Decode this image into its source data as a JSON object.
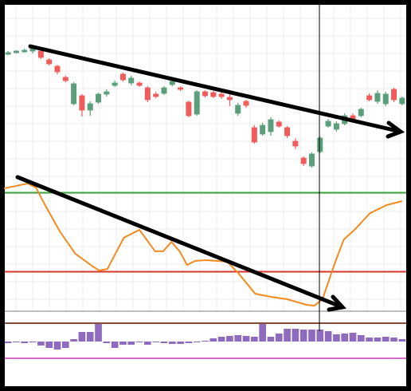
{
  "chart_data": [
    {
      "type": "candlestick",
      "xlim": [
        -0.5,
        48.5
      ],
      "ylim": [
        0,
        220
      ],
      "up_color": "#5a9e7c",
      "down_color": "#f15b5b",
      "grid": true,
      "open": [
        157,
        159,
        160,
        161,
        161,
        150,
        142,
        128,
        95,
        105,
        87,
        97,
        107,
        118,
        132,
        121,
        121,
        115,
        107,
        108,
        119,
        115,
        97,
        82,
        110,
        109,
        107,
        103,
        83,
        98,
        65,
        57,
        60,
        72,
        65,
        48,
        27,
        17,
        35,
        67,
        63,
        70,
        80,
        80,
        105,
        98,
        95,
        113,
        95
      ],
      "high": [
        161,
        162,
        164,
        167,
        163,
        152,
        144,
        130,
        122,
        107,
        98,
        109,
        113,
        124,
        134,
        130,
        123,
        117,
        110,
        117,
        125,
        117,
        99,
        112,
        112,
        111,
        110,
        107,
        96,
        100,
        68,
        71,
        78,
        74,
        67,
        52,
        29,
        34,
        54,
        76,
        73,
        83,
        83,
        90,
        108,
        112,
        110,
        115,
        104
      ],
      "low": [
        156,
        158,
        159,
        158,
        151,
        143,
        132,
        122,
        93,
        79,
        80,
        95,
        104,
        116,
        123,
        118,
        116,
        97,
        102,
        106,
        117,
        111,
        78,
        80,
        103,
        102,
        101,
        92,
        80,
        90,
        45,
        55,
        55,
        65,
        52,
        38,
        17,
        15,
        33,
        65,
        60,
        68,
        72,
        78,
        98,
        95,
        92,
        97,
        93
      ],
      "close": [
        159,
        161,
        162,
        165,
        153,
        145,
        135,
        124,
        120,
        87,
        95,
        107,
        110,
        121,
        125,
        127,
        118,
        100,
        104,
        115,
        123,
        113,
        80,
        110,
        105,
        104,
        104,
        100,
        93,
        93,
        47,
        68,
        75,
        67,
        55,
        42,
        20,
        32,
        52,
        73,
        70,
        80,
        75,
        88,
        100,
        108,
        107,
        100,
        102
      ]
    },
    {
      "type": "line",
      "xlim": [
        -0.5,
        48.5
      ],
      "ylim": [
        0,
        100
      ],
      "color": "#f28a1e",
      "grid": true,
      "x": [
        -0.5,
        1.0,
        2.4,
        3.4,
        4.4,
        6.3,
        8.2,
        10.2,
        11.1,
        12.1,
        14.1,
        16.0,
        17.9,
        18.9,
        19.9,
        20.9,
        21.8,
        22.8,
        24.2,
        26.7,
        28.1,
        30.1,
        32.0,
        34.0,
        36.4,
        37.3,
        38.3,
        39.8,
        40.9,
        42.2,
        44.1,
        46.1,
        48.0
      ],
      "values": [
        93.3,
        95.2,
        97.0,
        93.9,
        81.8,
        60.6,
        43.6,
        34.5,
        30.9,
        32.1,
        55.8,
        61.8,
        45.5,
        45.5,
        52.7,
        45.5,
        35.2,
        38.2,
        38.8,
        37.6,
        28.5,
        13.3,
        10.9,
        9.1,
        4.8,
        4.2,
        9.1,
        36.4,
        54.5,
        61.8,
        74.5,
        80.6,
        83.6
      ],
      "hlines": [
        {
          "value": 90,
          "color": "#3aa53a"
        },
        {
          "value": 30,
          "color": "#d8352c"
        }
      ]
    },
    {
      "type": "bar",
      "xlim": [
        -0.5,
        48.5
      ],
      "ylim": [
        -30,
        30
      ],
      "color": "#8e6bbf",
      "values": [
        -2,
        -1,
        -2,
        -1,
        -5,
        -8,
        -10,
        -8,
        3,
        12,
        12,
        22,
        -2,
        -8,
        -4,
        -4,
        -1,
        -4,
        -1,
        -2,
        -3,
        -3,
        -2,
        -1,
        1,
        4,
        6,
        7,
        8,
        7,
        6,
        22,
        6,
        10,
        16,
        16,
        15,
        15,
        15,
        13,
        9,
        10,
        11,
        8,
        5,
        5,
        6,
        5,
        3
      ],
      "hlines": [
        {
          "value": 23,
          "color": "#8b4a3a"
        },
        {
          "value": -21,
          "color": "#d86cc8"
        }
      ]
    }
  ]
}
